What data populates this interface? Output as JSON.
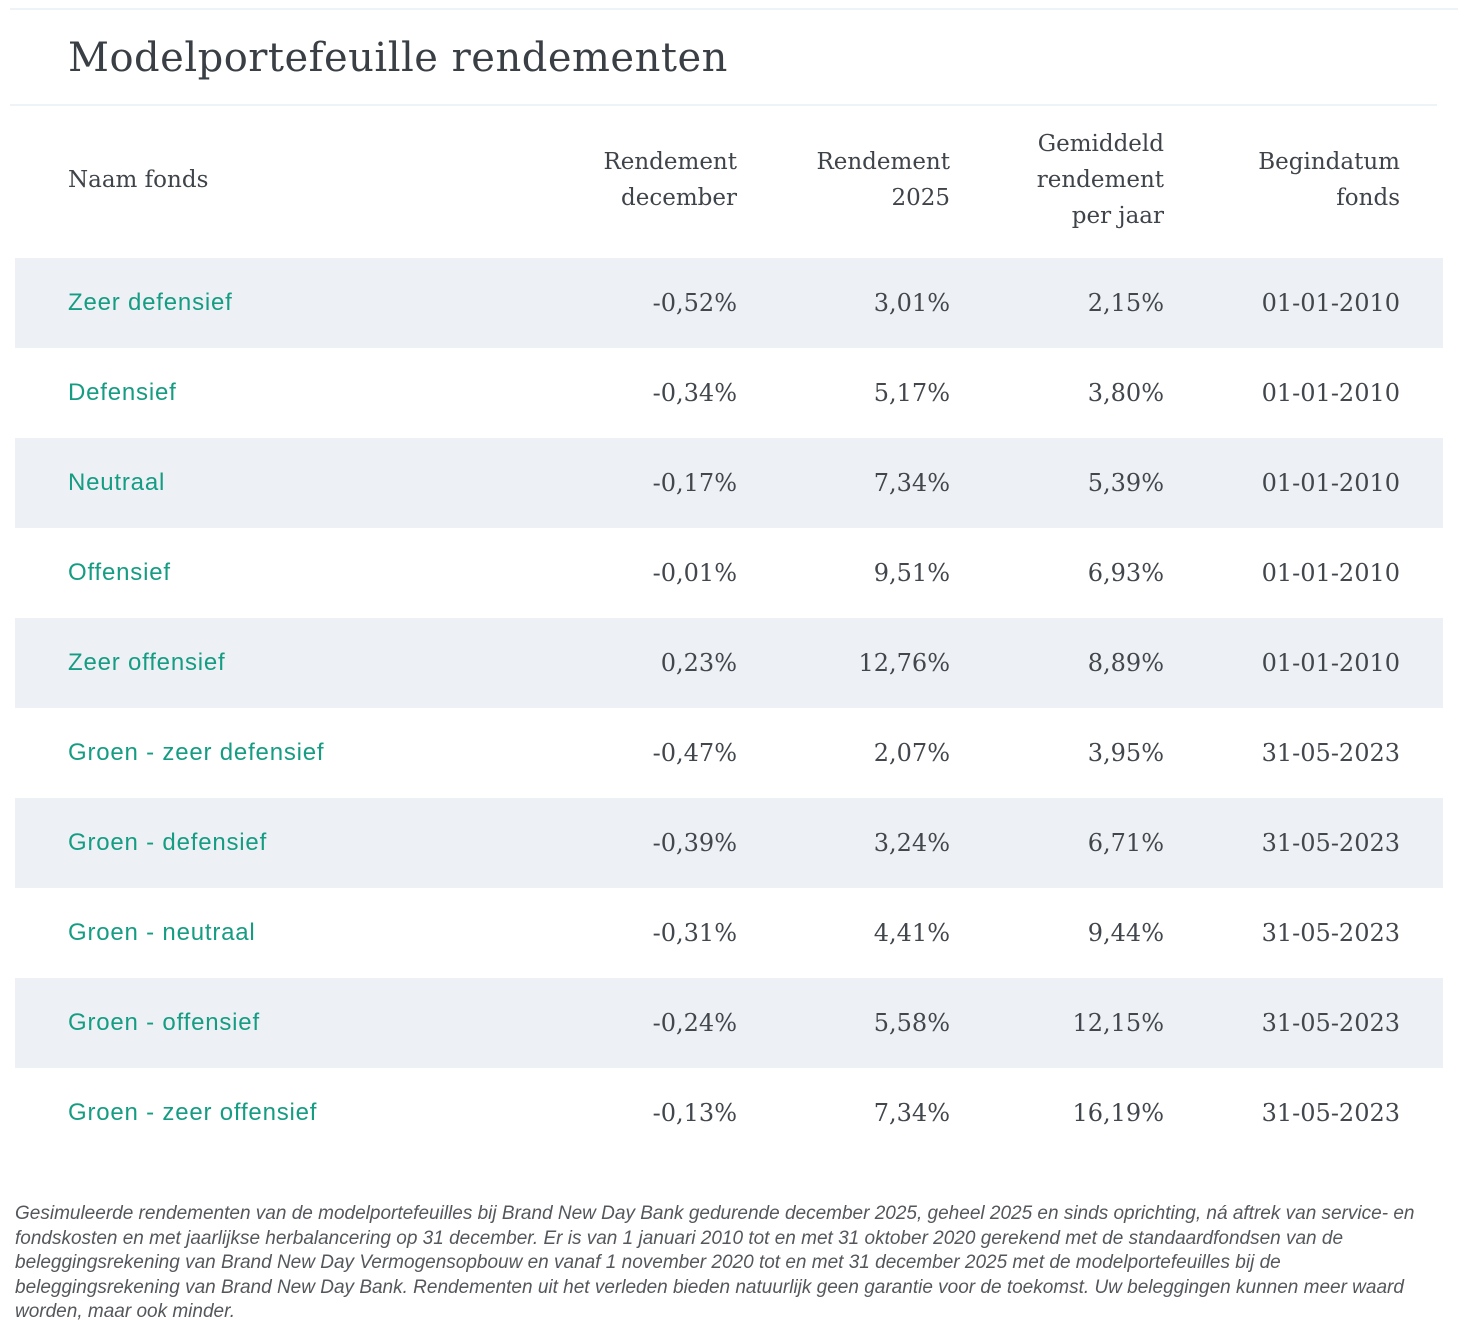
{
  "page": {
    "title": "Modelportefeuille rendementen"
  },
  "colors": {
    "accent_teal": "#169c82",
    "row_shade": "#edf1f6",
    "heading_text": "#3a3f45",
    "body_text": "#42474d",
    "footnote_text": "#54575b",
    "hairline": "#eef3f8"
  },
  "table": {
    "headers": {
      "name": "Naam fonds",
      "december": "Rendement\ndecember",
      "year": "Rendement\n2025",
      "average": "Gemiddeld\nrendement\nper jaar",
      "start": "Begindatum\nfonds"
    },
    "rows": [
      {
        "name": "Zeer defensief",
        "december": "-0,52%",
        "year": "3,01%",
        "average": "2,15%",
        "start": "01-01-2010"
      },
      {
        "name": "Defensief",
        "december": "-0,34%",
        "year": "5,17%",
        "average": "3,80%",
        "start": "01-01-2010"
      },
      {
        "name": "Neutraal",
        "december": "-0,17%",
        "year": "7,34%",
        "average": "5,39%",
        "start": "01-01-2010"
      },
      {
        "name": "Offensief",
        "december": "-0,01%",
        "year": "9,51%",
        "average": "6,93%",
        "start": "01-01-2010"
      },
      {
        "name": "Zeer offensief",
        "december": "0,23%",
        "year": "12,76%",
        "average": "8,89%",
        "start": "01-01-2010"
      },
      {
        "name": "Groen - zeer defensief",
        "december": "-0,47%",
        "year": "2,07%",
        "average": "3,95%",
        "start": "31-05-2023"
      },
      {
        "name": "Groen - defensief",
        "december": "-0,39%",
        "year": "3,24%",
        "average": "6,71%",
        "start": "31-05-2023"
      },
      {
        "name": "Groen - neutraal",
        "december": "-0,31%",
        "year": "4,41%",
        "average": "9,44%",
        "start": "31-05-2023"
      },
      {
        "name": "Groen - offensief",
        "december": "-0,24%",
        "year": "5,58%",
        "average": "12,15%",
        "start": "31-05-2023"
      },
      {
        "name": "Groen - zeer offensief",
        "december": "-0,13%",
        "year": "7,34%",
        "average": "16,19%",
        "start": "31-05-2023"
      }
    ]
  },
  "footnote": "Gesimuleerde rendementen van de modelportefeuilles bij Brand New Day Bank gedurende december 2025, geheel 2025 en sinds oprichting, ná aftrek van service- en fondskosten en met jaarlijkse herbalancering op 31 december. Er is van 1 januari 2010 tot en met 31 oktober 2020 gerekend met de standaardfondsen van de beleggingsrekening van Brand New Day Vermogensopbouw en vanaf 1 november 2020 tot en met 31 december 2025 met de modelportefeuilles bij de beleggingsrekening van Brand New Day Bank. Rendementen uit het verleden bieden natuurlijk geen garantie voor de toekomst. Uw beleggingen kunnen meer waard worden, maar ook minder."
}
